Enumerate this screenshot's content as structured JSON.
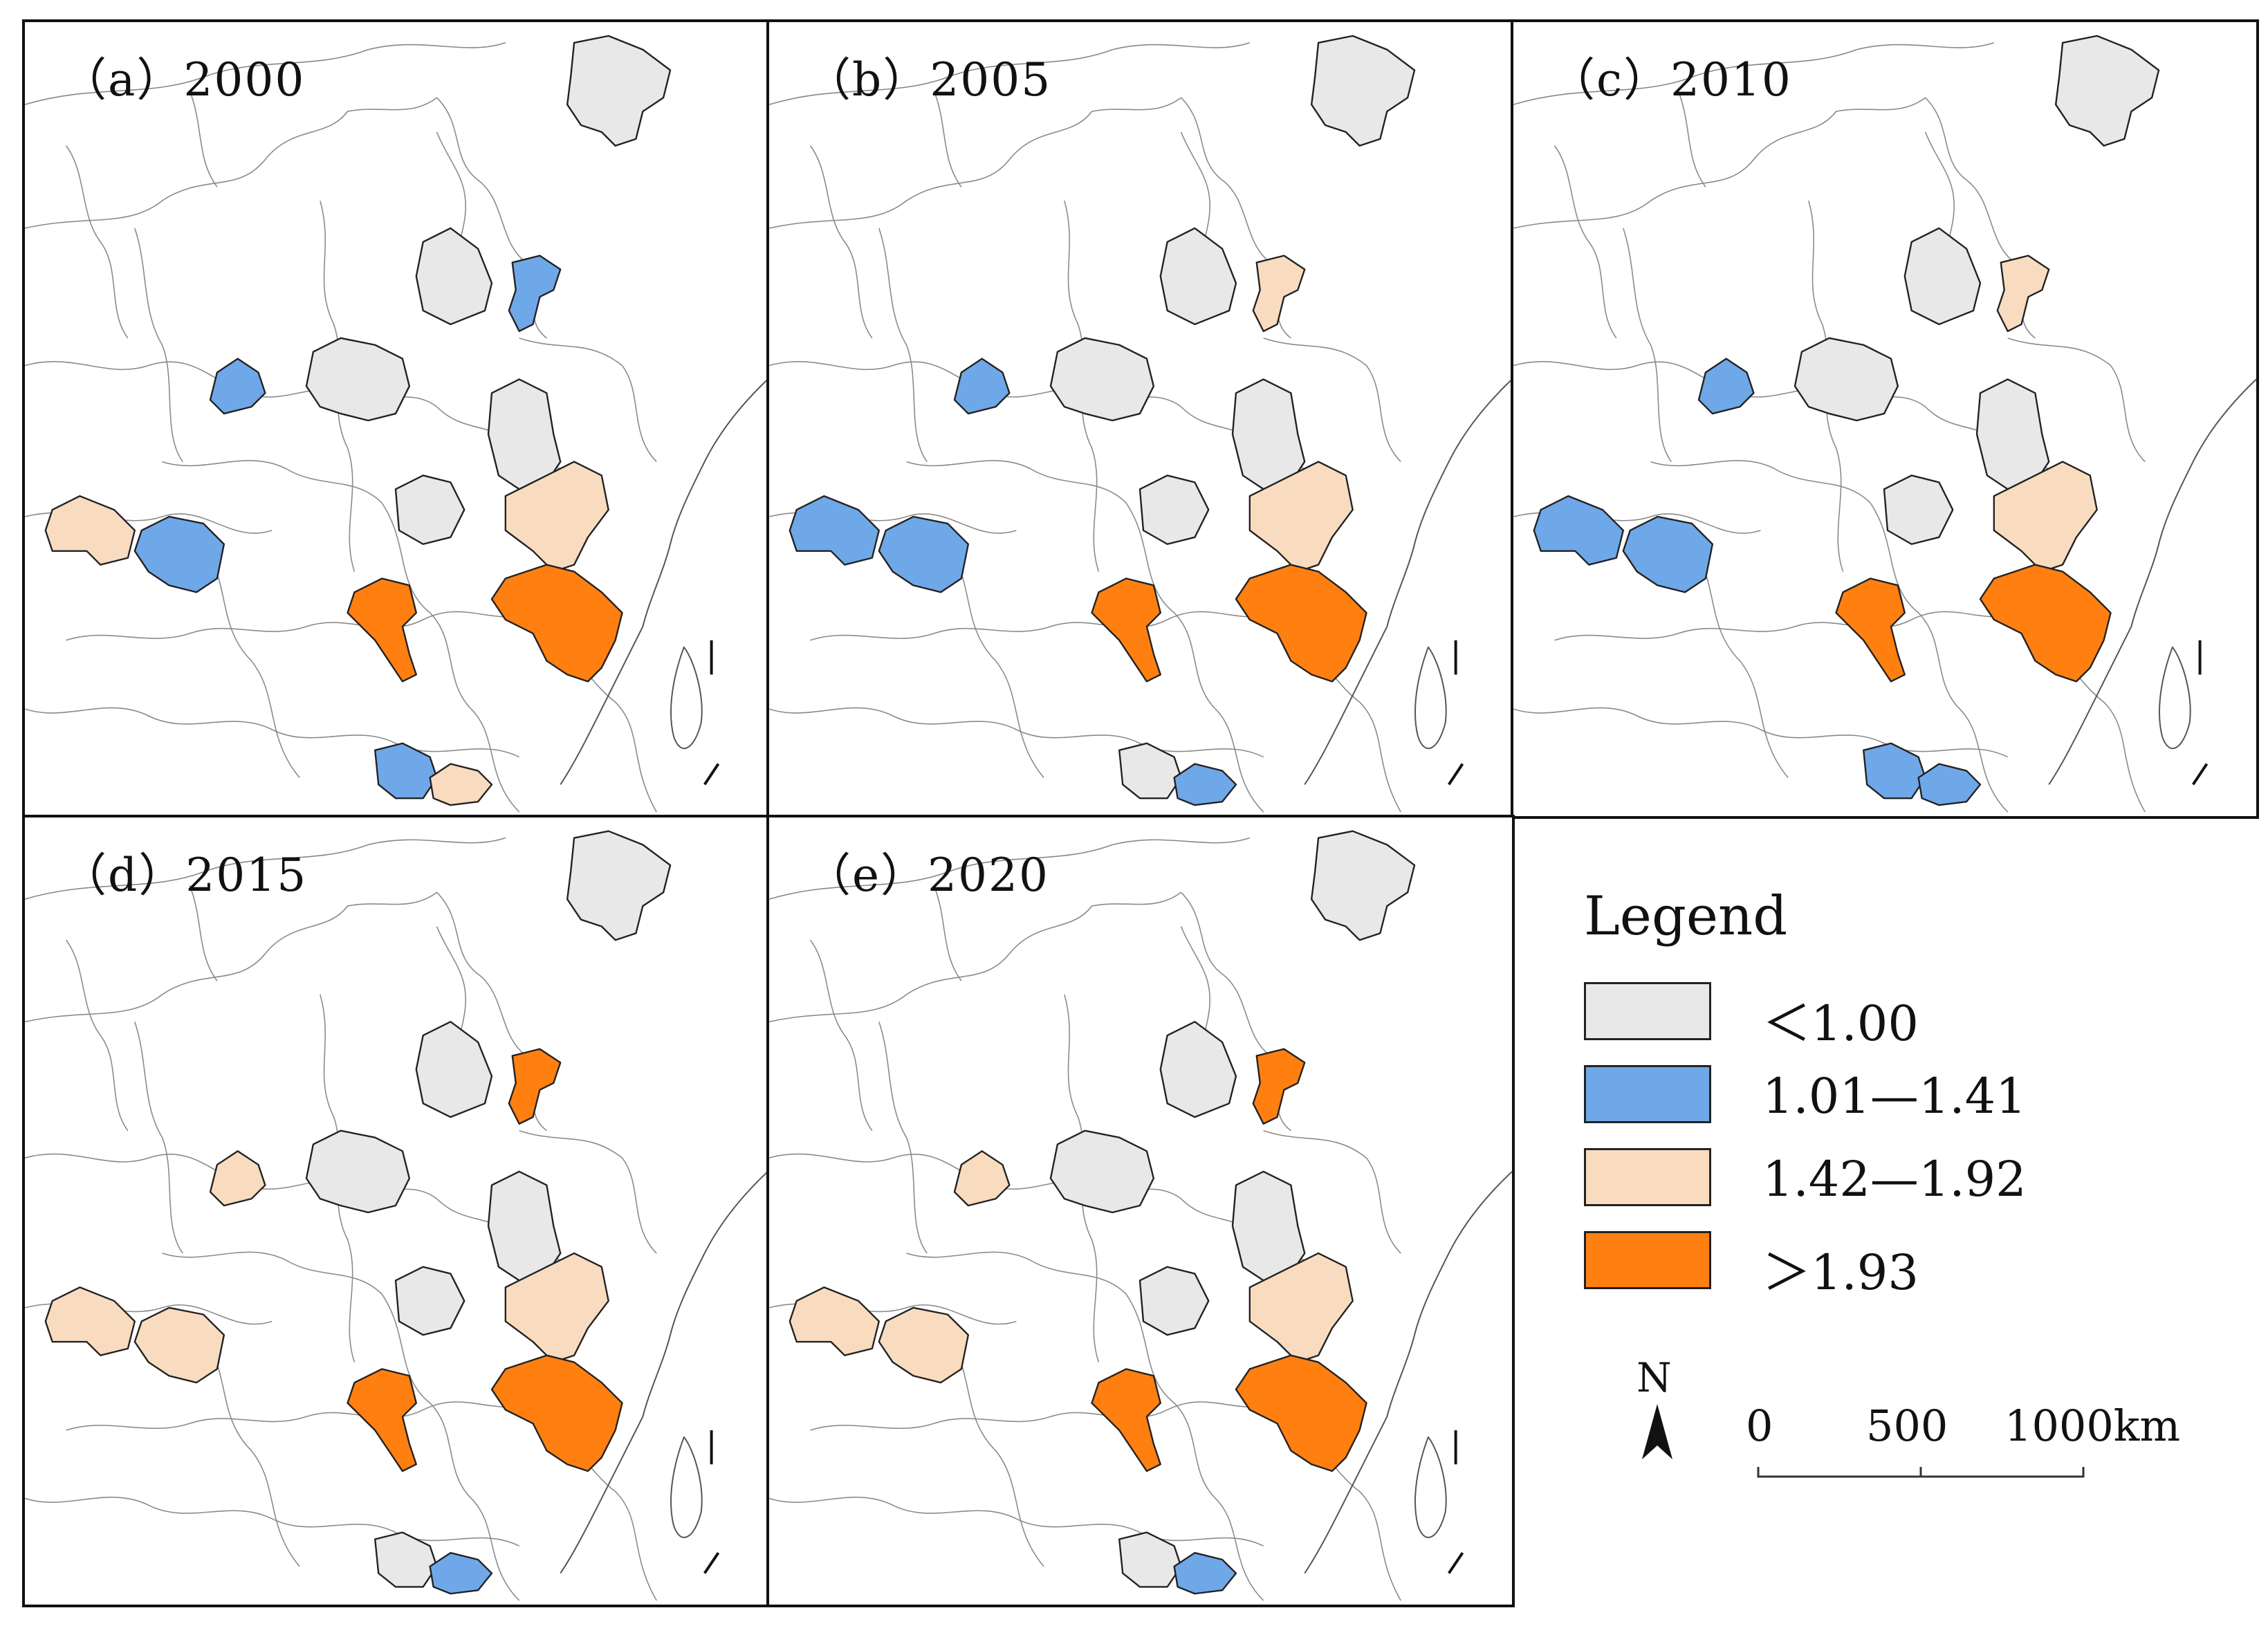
{
  "panels": [
    {
      "title": "（a）2000",
      "colors": {
        "shaanxi": "#e8e8e8",
        "shanxi": "#e8e8e8",
        "hebei": "#6fa8e8",
        "heilong": "#e8e8e8",
        "gansu": "#6fa8e8",
        "anhui": "#e8e8e8",
        "zhejiang": "#f9dcbf",
        "jiangxi": "#ff7f10",
        "hunan": "#ff7f10",
        "hubei": "#e8e8e8",
        "chengdu": "#f9dcbf",
        "chongqing": "#6fa8e8",
        "gx": "#6fa8e8",
        "gd": "#f9dcbf"
      }
    },
    {
      "title": "（b）2005",
      "colors": {
        "shaanxi": "#e8e8e8",
        "shanxi": "#e8e8e8",
        "hebei": "#f9dcbf",
        "heilong": "#e8e8e8",
        "gansu": "#6fa8e8",
        "anhui": "#e8e8e8",
        "zhejiang": "#f9dcbf",
        "jiangxi": "#ff7f10",
        "hunan": "#ff7f10",
        "hubei": "#e8e8e8",
        "chengdu": "#6fa8e8",
        "chongqing": "#6fa8e8",
        "gx": "#e8e8e8",
        "gd": "#6fa8e8"
      }
    },
    {
      "title": "（c）2010",
      "colors": {
        "shaanxi": "#e8e8e8",
        "shanxi": "#e8e8e8",
        "hebei": "#f9dcbf",
        "heilong": "#e8e8e8",
        "gansu": "#6fa8e8",
        "anhui": "#e8e8e8",
        "zhejiang": "#f9dcbf",
        "jiangxi": "#ff7f10",
        "hunan": "#ff7f10",
        "hubei": "#e8e8e8",
        "chengdu": "#6fa8e8",
        "chongqing": "#6fa8e8",
        "gx": "#6fa8e8",
        "gd": "#6fa8e8"
      }
    },
    {
      "title": "（d）2015",
      "colors": {
        "shaanxi": "#e8e8e8",
        "shanxi": "#e8e8e8",
        "hebei": "#ff7f10",
        "heilong": "#e8e8e8",
        "gansu": "#f9dcbf",
        "anhui": "#e8e8e8",
        "zhejiang": "#f9dcbf",
        "jiangxi": "#ff7f10",
        "hunan": "#ff7f10",
        "hubei": "#e8e8e8",
        "chengdu": "#f9dcbf",
        "chongqing": "#f9dcbf",
        "gx": "#e8e8e8",
        "gd": "#6fa8e8"
      }
    },
    {
      "title": "（e）2020",
      "colors": {
        "shaanxi": "#e8e8e8",
        "shanxi": "#e8e8e8",
        "hebei": "#ff7f10",
        "heilong": "#e8e8e8",
        "gansu": "#f9dcbf",
        "anhui": "#e8e8e8",
        "zhejiang": "#f9dcbf",
        "jiangxi": "#ff7f10",
        "hunan": "#ff7f10",
        "hubei": "#e8e8e8",
        "chengdu": "#f9dcbf",
        "chongqing": "#f9dcbf",
        "gx": "#e8e8e8",
        "gd": "#6fa8e8"
      }
    }
  ],
  "legend": {
    "title": "Legend",
    "items": [
      {
        "label": "＜1.00",
        "color": "#e8e8e8"
      },
      {
        "label": "1.01—1.41",
        "color": "#6fa8e8"
      },
      {
        "label": "1.42—1.92",
        "color": "#f9dcbf"
      },
      {
        "label": "＞1.93",
        "color": "#ff7f10"
      }
    ]
  },
  "north_label": "N",
  "scale": {
    "labels": [
      "0",
      "500",
      "1000km"
    ]
  }
}
